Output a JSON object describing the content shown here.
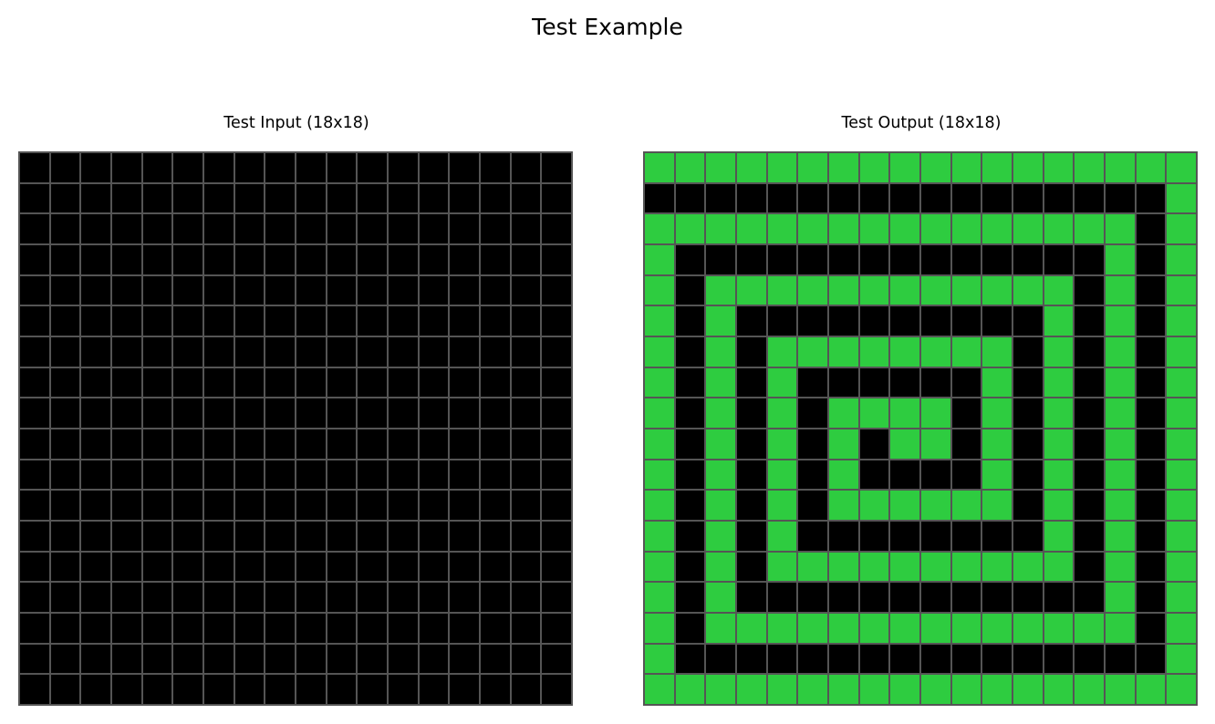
{
  "title": "Test Example",
  "palette": {
    "0": "#000000",
    "3": "#2ECC40",
    "grid_line": "#555555"
  },
  "panels": [
    {
      "title": "Test Input (18x18)",
      "rows": 18,
      "cols": 18,
      "grid": [
        [
          0,
          0,
          0,
          0,
          0,
          0,
          0,
          0,
          0,
          0,
          0,
          0,
          0,
          0,
          0,
          0,
          0,
          0
        ],
        [
          0,
          0,
          0,
          0,
          0,
          0,
          0,
          0,
          0,
          0,
          0,
          0,
          0,
          0,
          0,
          0,
          0,
          0
        ],
        [
          0,
          0,
          0,
          0,
          0,
          0,
          0,
          0,
          0,
          0,
          0,
          0,
          0,
          0,
          0,
          0,
          0,
          0
        ],
        [
          0,
          0,
          0,
          0,
          0,
          0,
          0,
          0,
          0,
          0,
          0,
          0,
          0,
          0,
          0,
          0,
          0,
          0
        ],
        [
          0,
          0,
          0,
          0,
          0,
          0,
          0,
          0,
          0,
          0,
          0,
          0,
          0,
          0,
          0,
          0,
          0,
          0
        ],
        [
          0,
          0,
          0,
          0,
          0,
          0,
          0,
          0,
          0,
          0,
          0,
          0,
          0,
          0,
          0,
          0,
          0,
          0
        ],
        [
          0,
          0,
          0,
          0,
          0,
          0,
          0,
          0,
          0,
          0,
          0,
          0,
          0,
          0,
          0,
          0,
          0,
          0
        ],
        [
          0,
          0,
          0,
          0,
          0,
          0,
          0,
          0,
          0,
          0,
          0,
          0,
          0,
          0,
          0,
          0,
          0,
          0
        ],
        [
          0,
          0,
          0,
          0,
          0,
          0,
          0,
          0,
          0,
          0,
          0,
          0,
          0,
          0,
          0,
          0,
          0,
          0
        ],
        [
          0,
          0,
          0,
          0,
          0,
          0,
          0,
          0,
          0,
          0,
          0,
          0,
          0,
          0,
          0,
          0,
          0,
          0
        ],
        [
          0,
          0,
          0,
          0,
          0,
          0,
          0,
          0,
          0,
          0,
          0,
          0,
          0,
          0,
          0,
          0,
          0,
          0
        ],
        [
          0,
          0,
          0,
          0,
          0,
          0,
          0,
          0,
          0,
          0,
          0,
          0,
          0,
          0,
          0,
          0,
          0,
          0
        ],
        [
          0,
          0,
          0,
          0,
          0,
          0,
          0,
          0,
          0,
          0,
          0,
          0,
          0,
          0,
          0,
          0,
          0,
          0
        ],
        [
          0,
          0,
          0,
          0,
          0,
          0,
          0,
          0,
          0,
          0,
          0,
          0,
          0,
          0,
          0,
          0,
          0,
          0
        ],
        [
          0,
          0,
          0,
          0,
          0,
          0,
          0,
          0,
          0,
          0,
          0,
          0,
          0,
          0,
          0,
          0,
          0,
          0
        ],
        [
          0,
          0,
          0,
          0,
          0,
          0,
          0,
          0,
          0,
          0,
          0,
          0,
          0,
          0,
          0,
          0,
          0,
          0
        ],
        [
          0,
          0,
          0,
          0,
          0,
          0,
          0,
          0,
          0,
          0,
          0,
          0,
          0,
          0,
          0,
          0,
          0,
          0
        ],
        [
          0,
          0,
          0,
          0,
          0,
          0,
          0,
          0,
          0,
          0,
          0,
          0,
          0,
          0,
          0,
          0,
          0,
          0
        ]
      ]
    },
    {
      "title": "Test Output (18x18)",
      "rows": 18,
      "cols": 18,
      "grid": [
        [
          3,
          3,
          3,
          3,
          3,
          3,
          3,
          3,
          3,
          3,
          3,
          3,
          3,
          3,
          3,
          3,
          3,
          3
        ],
        [
          0,
          0,
          0,
          0,
          0,
          0,
          0,
          0,
          0,
          0,
          0,
          0,
          0,
          0,
          0,
          0,
          0,
          3
        ],
        [
          3,
          3,
          3,
          3,
          3,
          3,
          3,
          3,
          3,
          3,
          3,
          3,
          3,
          3,
          3,
          3,
          0,
          3
        ],
        [
          3,
          0,
          0,
          0,
          0,
          0,
          0,
          0,
          0,
          0,
          0,
          0,
          0,
          0,
          0,
          3,
          0,
          3
        ],
        [
          3,
          0,
          3,
          3,
          3,
          3,
          3,
          3,
          3,
          3,
          3,
          3,
          3,
          3,
          0,
          3,
          0,
          3
        ],
        [
          3,
          0,
          3,
          0,
          0,
          0,
          0,
          0,
          0,
          0,
          0,
          0,
          0,
          3,
          0,
          3,
          0,
          3
        ],
        [
          3,
          0,
          3,
          0,
          3,
          3,
          3,
          3,
          3,
          3,
          3,
          3,
          0,
          3,
          0,
          3,
          0,
          3
        ],
        [
          3,
          0,
          3,
          0,
          3,
          0,
          0,
          0,
          0,
          0,
          0,
          3,
          0,
          3,
          0,
          3,
          0,
          3
        ],
        [
          3,
          0,
          3,
          0,
          3,
          0,
          3,
          3,
          3,
          3,
          0,
          3,
          0,
          3,
          0,
          3,
          0,
          3
        ],
        [
          3,
          0,
          3,
          0,
          3,
          0,
          3,
          0,
          3,
          3,
          0,
          3,
          0,
          3,
          0,
          3,
          0,
          3
        ],
        [
          3,
          0,
          3,
          0,
          3,
          0,
          3,
          0,
          0,
          0,
          0,
          3,
          0,
          3,
          0,
          3,
          0,
          3
        ],
        [
          3,
          0,
          3,
          0,
          3,
          0,
          3,
          3,
          3,
          3,
          3,
          3,
          0,
          3,
          0,
          3,
          0,
          3
        ],
        [
          3,
          0,
          3,
          0,
          3,
          0,
          0,
          0,
          0,
          0,
          0,
          0,
          0,
          3,
          0,
          3,
          0,
          3
        ],
        [
          3,
          0,
          3,
          0,
          3,
          3,
          3,
          3,
          3,
          3,
          3,
          3,
          3,
          3,
          0,
          3,
          0,
          3
        ],
        [
          3,
          0,
          3,
          0,
          0,
          0,
          0,
          0,
          0,
          0,
          0,
          0,
          0,
          0,
          0,
          3,
          0,
          3
        ],
        [
          3,
          0,
          3,
          3,
          3,
          3,
          3,
          3,
          3,
          3,
          3,
          3,
          3,
          3,
          3,
          3,
          0,
          3
        ],
        [
          3,
          0,
          0,
          0,
          0,
          0,
          0,
          0,
          0,
          0,
          0,
          0,
          0,
          0,
          0,
          0,
          0,
          3
        ],
        [
          3,
          3,
          3,
          3,
          3,
          3,
          3,
          3,
          3,
          3,
          3,
          3,
          3,
          3,
          3,
          3,
          3,
          3
        ]
      ]
    }
  ]
}
